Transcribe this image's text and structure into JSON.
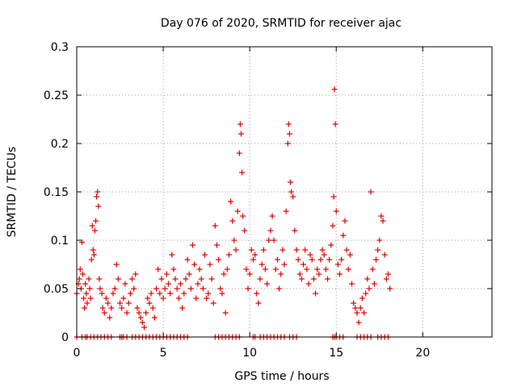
{
  "chart_data": {
    "type": "scatter",
    "title": "Day 076 of 2020, SRMTID for receiver ajac",
    "xlabel": "GPS time / hours",
    "ylabel": "SRMTID / TECUs",
    "xlim": [
      0,
      24
    ],
    "ylim": [
      0,
      0.3
    ],
    "xticks": [
      0,
      5,
      10,
      15,
      20
    ],
    "xtick_labels": [
      "0",
      "5",
      "10",
      "15",
      "20"
    ],
    "yticks": [
      0,
      0.05,
      0.1,
      0.15,
      0.2,
      0.25,
      0.3
    ],
    "ytick_labels": [
      "0",
      "0.05",
      "0.1",
      "0.15",
      "0.2",
      "0.25",
      "0.3"
    ],
    "grid": true,
    "marker": "+",
    "color": "#e00000",
    "series": [
      {
        "name": "SRMTID",
        "points": [
          [
            0.0,
            0.045
          ],
          [
            0.1,
            0.055
          ],
          [
            0.15,
            0.06
          ],
          [
            0.2,
            0.07
          ],
          [
            0.25,
            0.05
          ],
          [
            0.3,
            0.098
          ],
          [
            0.35,
            0.065
          ],
          [
            0.4,
            0.04
          ],
          [
            0.45,
            0.03
          ],
          [
            0.5,
            0.055
          ],
          [
            0.55,
            0.045
          ],
          [
            0.6,
            0.035
          ],
          [
            0.7,
            0.06
          ],
          [
            0.75,
            0.05
          ],
          [
            0.8,
            0.04
          ],
          [
            0.85,
            0.08
          ],
          [
            0.9,
            0.115
          ],
          [
            0.95,
            0.09
          ],
          [
            1.0,
            0.085
          ],
          [
            1.05,
            0.11
          ],
          [
            1.1,
            0.12
          ],
          [
            1.15,
            0.145
          ],
          [
            1.2,
            0.15
          ],
          [
            1.25,
            0.135
          ],
          [
            1.3,
            0.06
          ],
          [
            1.35,
            0.05
          ],
          [
            1.45,
            0.045
          ],
          [
            1.5,
            0.03
          ],
          [
            1.6,
            0.025
          ],
          [
            1.7,
            0.04
          ],
          [
            1.8,
            0.035
          ],
          [
            1.9,
            0.02
          ],
          [
            2.0,
            0.03
          ],
          [
            2.1,
            0.045
          ],
          [
            2.2,
            0.05
          ],
          [
            2.3,
            0.075
          ],
          [
            2.4,
            0.06
          ],
          [
            2.5,
            0.035
          ],
          [
            2.6,
            0.03
          ],
          [
            2.7,
            0.04
          ],
          [
            2.8,
            0.055
          ],
          [
            2.9,
            0.025
          ],
          [
            3.0,
            0.035
          ],
          [
            3.1,
            0.045
          ],
          [
            3.2,
            0.06
          ],
          [
            3.3,
            0.05
          ],
          [
            3.4,
            0.065
          ],
          [
            3.5,
            0.03
          ],
          [
            3.6,
            0.025
          ],
          [
            3.7,
            0.02
          ],
          [
            3.8,
            0.015
          ],
          [
            3.9,
            0.01
          ],
          [
            4.0,
            0.025
          ],
          [
            4.1,
            0.04
          ],
          [
            4.2,
            0.035
          ],
          [
            4.3,
            0.045
          ],
          [
            4.4,
            0.03
          ],
          [
            4.5,
            0.02
          ],
          [
            4.6,
            0.05
          ],
          [
            4.7,
            0.07
          ],
          [
            4.8,
            0.045
          ],
          [
            4.9,
            0.06
          ],
          [
            5.0,
            0.04
          ],
          [
            5.1,
            0.05
          ],
          [
            5.2,
            0.065
          ],
          [
            5.3,
            0.055
          ],
          [
            5.4,
            0.045
          ],
          [
            5.5,
            0.085
          ],
          [
            5.6,
            0.07
          ],
          [
            5.7,
            0.06
          ],
          [
            5.8,
            0.05
          ],
          [
            5.9,
            0.04
          ],
          [
            6.0,
            0.055
          ],
          [
            6.1,
            0.03
          ],
          [
            6.2,
            0.045
          ],
          [
            6.3,
            0.06
          ],
          [
            6.4,
            0.08
          ],
          [
            6.5,
            0.065
          ],
          [
            6.6,
            0.05
          ],
          [
            6.7,
            0.095
          ],
          [
            6.8,
            0.075
          ],
          [
            6.9,
            0.04
          ],
          [
            7.0,
            0.055
          ],
          [
            7.1,
            0.07
          ],
          [
            7.2,
            0.06
          ],
          [
            7.3,
            0.05
          ],
          [
            7.4,
            0.085
          ],
          [
            7.5,
            0.04
          ],
          [
            7.6,
            0.045
          ],
          [
            7.7,
            0.075
          ],
          [
            7.8,
            0.06
          ],
          [
            7.9,
            0.035
          ],
          [
            8.0,
            0.115
          ],
          [
            8.1,
            0.095
          ],
          [
            8.2,
            0.08
          ],
          [
            8.3,
            0.05
          ],
          [
            8.4,
            0.045
          ],
          [
            8.5,
            0.065
          ],
          [
            8.6,
            0.025
          ],
          [
            8.7,
            0.07
          ],
          [
            8.8,
            0.085
          ],
          [
            8.9,
            0.14
          ],
          [
            9.0,
            0.12
          ],
          [
            9.1,
            0.1
          ],
          [
            9.2,
            0.09
          ],
          [
            9.3,
            0.13
          ],
          [
            9.4,
            0.19
          ],
          [
            9.45,
            0.22
          ],
          [
            9.5,
            0.21
          ],
          [
            9.55,
            0.17
          ],
          [
            9.6,
            0.125
          ],
          [
            9.7,
            0.11
          ],
          [
            9.8,
            0.07
          ],
          [
            9.9,
            0.05
          ],
          [
            10.0,
            0.065
          ],
          [
            10.1,
            0.09
          ],
          [
            10.2,
            0.08
          ],
          [
            10.3,
            0.085
          ],
          [
            10.4,
            0.045
          ],
          [
            10.5,
            0.035
          ],
          [
            10.6,
            0.06
          ],
          [
            10.7,
            0.075
          ],
          [
            10.8,
            0.09
          ],
          [
            10.9,
            0.07
          ],
          [
            11.0,
            0.055
          ],
          [
            11.1,
            0.1
          ],
          [
            11.2,
            0.11
          ],
          [
            11.3,
            0.125
          ],
          [
            11.4,
            0.1
          ],
          [
            11.5,
            0.07
          ],
          [
            11.6,
            0.08
          ],
          [
            11.7,
            0.05
          ],
          [
            11.8,
            0.065
          ],
          [
            11.9,
            0.09
          ],
          [
            12.0,
            0.075
          ],
          [
            12.1,
            0.13
          ],
          [
            12.2,
            0.2
          ],
          [
            12.25,
            0.22
          ],
          [
            12.3,
            0.21
          ],
          [
            12.35,
            0.16
          ],
          [
            12.4,
            0.15
          ],
          [
            12.5,
            0.145
          ],
          [
            12.6,
            0.11
          ],
          [
            12.7,
            0.09
          ],
          [
            12.8,
            0.08
          ],
          [
            12.9,
            0.065
          ],
          [
            13.0,
            0.06
          ],
          [
            13.1,
            0.075
          ],
          [
            13.2,
            0.09
          ],
          [
            13.3,
            0.07
          ],
          [
            13.4,
            0.055
          ],
          [
            13.5,
            0.085
          ],
          [
            13.6,
            0.08
          ],
          [
            13.7,
            0.06
          ],
          [
            13.8,
            0.045
          ],
          [
            13.9,
            0.07
          ],
          [
            14.0,
            0.065
          ],
          [
            14.1,
            0.08
          ],
          [
            14.2,
            0.09
          ],
          [
            14.3,
            0.085
          ],
          [
            14.4,
            0.07
          ],
          [
            14.5,
            0.06
          ],
          [
            14.6,
            0.08
          ],
          [
            14.7,
            0.095
          ],
          [
            14.8,
            0.115
          ],
          [
            14.85,
            0.145
          ],
          [
            14.9,
            0.256
          ],
          [
            14.95,
            0.22
          ],
          [
            15.0,
            0.13
          ],
          [
            15.1,
            0.075
          ],
          [
            15.2,
            0.065
          ],
          [
            15.3,
            0.08
          ],
          [
            15.4,
            0.105
          ],
          [
            15.5,
            0.12
          ],
          [
            15.6,
            0.09
          ],
          [
            15.7,
            0.07
          ],
          [
            15.8,
            0.085
          ],
          [
            15.9,
            0.055
          ],
          [
            16.0,
            0.035
          ],
          [
            16.1,
            0.03
          ],
          [
            16.2,
            0.025
          ],
          [
            16.3,
            0.015
          ],
          [
            16.4,
            0.03
          ],
          [
            16.5,
            0.04
          ],
          [
            16.6,
            0.025
          ],
          [
            16.7,
            0.045
          ],
          [
            16.8,
            0.06
          ],
          [
            16.9,
            0.05
          ],
          [
            17.0,
            0.15
          ],
          [
            17.1,
            0.07
          ],
          [
            17.2,
            0.055
          ],
          [
            17.3,
            0.08
          ],
          [
            17.4,
            0.09
          ],
          [
            17.5,
            0.1
          ],
          [
            17.6,
            0.125
          ],
          [
            17.7,
            0.12
          ],
          [
            17.8,
            0.085
          ],
          [
            17.9,
            0.06
          ],
          [
            18.0,
            0.065
          ],
          [
            18.1,
            0.05
          ]
        ]
      }
    ],
    "baseline_markers_x": [
      0.0,
      0.3,
      0.5,
      0.6,
      0.8,
      1.0,
      1.2,
      1.4,
      1.6,
      1.8,
      2.0,
      2.5,
      2.6,
      2.7,
      2.9,
      3.2,
      3.4,
      3.6,
      3.8,
      4.0,
      4.2,
      4.4,
      4.6,
      4.8,
      5.0,
      5.2,
      5.4,
      5.6,
      5.8,
      6.0,
      6.2,
      6.4,
      8.0,
      8.2,
      8.4,
      8.6,
      8.8,
      9.0,
      9.2,
      9.4,
      10.2,
      10.3,
      10.6,
      10.8,
      11.0,
      11.2,
      11.4,
      11.6,
      11.8,
      12.0,
      12.3,
      12.5,
      12.7,
      14.8,
      14.9,
      15.0,
      15.2,
      15.4,
      16.2,
      16.4,
      16.6,
      16.8,
      17.0,
      17.4,
      17.6,
      17.8,
      18.0
    ]
  }
}
